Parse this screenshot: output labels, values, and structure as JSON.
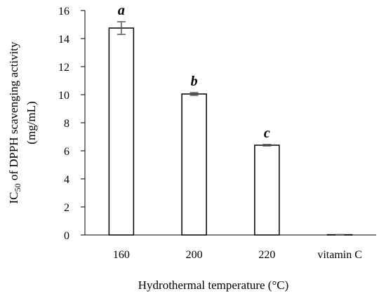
{
  "chart_data": {
    "type": "bar",
    "categories": [
      "160",
      "200",
      "220",
      "vitamin C"
    ],
    "values": [
      14.75,
      10.05,
      6.4,
      0.02
    ],
    "errors": [
      0.45,
      0.1,
      0.05,
      0.0
    ],
    "significance": [
      "a",
      "b",
      "c",
      ""
    ],
    "xlabel": "Hydrothermal temperature (°C)",
    "ylabel": {
      "prefix": "IC",
      "subscript": "50",
      "rest": " of DPPH scavenging activity",
      "line2": "(mg/mL)"
    },
    "ylim": [
      0,
      16
    ],
    "yticks": [
      0,
      2,
      4,
      6,
      8,
      10,
      12,
      14,
      16
    ],
    "grid": false,
    "legend": "none",
    "colors": {
      "bar_fill": "#ffffff",
      "bar_stroke": "#000000",
      "error_bar": "#555555"
    }
  }
}
